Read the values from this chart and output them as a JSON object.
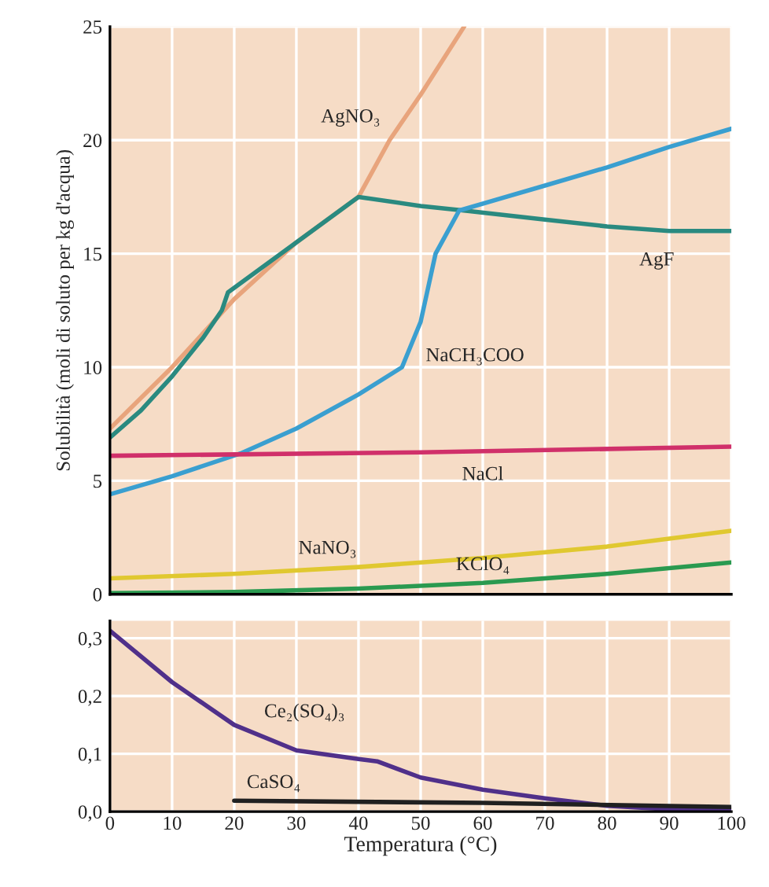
{
  "chart_data": [
    {
      "type": "line",
      "ylabel": "Solubilità (moli di soluto per kg d'acqua)",
      "xlim": [
        0,
        100
      ],
      "xticks": [
        0,
        10,
        20,
        30,
        40,
        50,
        60,
        70,
        80,
        90,
        100
      ],
      "ylim": [
        0,
        25
      ],
      "yticks": [
        0,
        5,
        10,
        15,
        20,
        25
      ],
      "grid": true,
      "tick_labels": "y",
      "series": [
        {
          "name": "AgNO₃",
          "color": "#e8a47c",
          "x": [
            0,
            10,
            20,
            30,
            40,
            45,
            50,
            57
          ],
          "values": [
            7.3,
            10,
            13,
            15.5,
            17.5,
            20,
            22,
            25
          ]
        },
        {
          "name": "AgF",
          "color": "#2a8a80",
          "x": [
            0,
            5,
            10,
            15,
            18,
            19,
            20,
            30,
            40,
            50,
            57,
            70,
            80,
            90,
            100
          ],
          "values": [
            6.9,
            8.1,
            9.6,
            11.3,
            12.5,
            13.3,
            13.5,
            15.5,
            17.5,
            17.1,
            16.9,
            16.5,
            16.2,
            16.0,
            16.0
          ]
        },
        {
          "name": "NaCH₃COO",
          "color": "#3a9fd0",
          "x": [
            0,
            10,
            21,
            30,
            40,
            47,
            50,
            52.4,
            56.2,
            70,
            80,
            90,
            100
          ],
          "values": [
            4.4,
            5.2,
            6.2,
            7.3,
            8.8,
            10,
            12,
            15,
            16.9,
            18,
            18.8,
            19.7,
            20.5
          ]
        },
        {
          "name": "NaCl",
          "color": "#d0306a",
          "x": [
            0,
            50,
            100
          ],
          "values": [
            6.1,
            6.25,
            6.5
          ]
        },
        {
          "name": "NaNO₃",
          "color": "#e0c830",
          "x": [
            0,
            20,
            40,
            60,
            80,
            100
          ],
          "values": [
            0.7,
            0.9,
            1.2,
            1.6,
            2.1,
            2.8
          ]
        },
        {
          "name": "KClO₄",
          "color": "#2a9a50",
          "x": [
            0,
            20,
            40,
            60,
            80,
            100
          ],
          "values": [
            0.05,
            0.1,
            0.25,
            0.5,
            0.9,
            1.4
          ]
        }
      ]
    },
    {
      "type": "line",
      "xlabel": "Temperatura (°C)",
      "xlim": [
        0,
        100
      ],
      "xticks": [
        0,
        10,
        20,
        30,
        40,
        50,
        60,
        70,
        80,
        90,
        100
      ],
      "ylim": [
        0,
        0.33
      ],
      "yticks": [
        {
          "value": 0,
          "label": "0,0"
        },
        {
          "value": 0.1,
          "label": "0,1"
        },
        {
          "value": 0.2,
          "label": "0,2"
        },
        {
          "value": 0.3,
          "label": "0,3"
        }
      ],
      "grid": true,
      "series": [
        {
          "name": "Ce₂(SO₄)₃",
          "color": "#50308a",
          "x": [
            0,
            10,
            20,
            30,
            40,
            43,
            50,
            60,
            70,
            80,
            90,
            100
          ],
          "values": [
            0.313,
            0.224,
            0.15,
            0.106,
            0.091,
            0.087,
            0.059,
            0.038,
            0.023,
            0.01,
            0.004,
            0.005
          ]
        },
        {
          "name": "CaSO₄",
          "color": "#202020",
          "x": [
            20,
            60,
            100
          ],
          "values": [
            0.019,
            0.015,
            0.008
          ]
        }
      ]
    }
  ]
}
